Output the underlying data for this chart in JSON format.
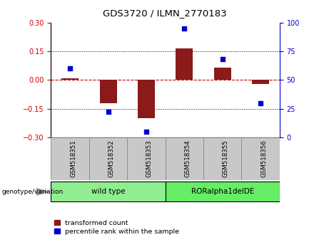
{
  "title": "GDS3720 / ILMN_2770183",
  "categories": [
    "GSM518351",
    "GSM518352",
    "GSM518353",
    "GSM518354",
    "GSM518355",
    "GSM518356"
  ],
  "red_values": [
    0.01,
    -0.12,
    -0.2,
    0.165,
    0.065,
    -0.02
  ],
  "blue_values_pct": [
    60,
    22,
    5,
    95,
    68,
    30
  ],
  "ylim_left": [
    -0.3,
    0.3
  ],
  "ylim_right": [
    0,
    100
  ],
  "yticks_left": [
    -0.3,
    -0.15,
    0,
    0.15,
    0.3
  ],
  "yticks_right": [
    0,
    25,
    50,
    75,
    100
  ],
  "hlines": [
    -0.15,
    0,
    0.15
  ],
  "legend_red": "transformed count",
  "legend_blue": "percentile rank within the sample",
  "bar_color": "#8B1A1A",
  "dot_color": "#0000CD",
  "zero_line_color": "#CC0000",
  "genotype_info": [
    {
      "label": "wild type",
      "span": [
        0,
        3
      ],
      "color": "#90EE90"
    },
    {
      "label": "RORalpha1delDE",
      "span": [
        3,
        6
      ],
      "color": "#66EE66"
    }
  ],
  "gray_cell_color": "#C8C8C8",
  "gray_cell_edge": "#888888"
}
